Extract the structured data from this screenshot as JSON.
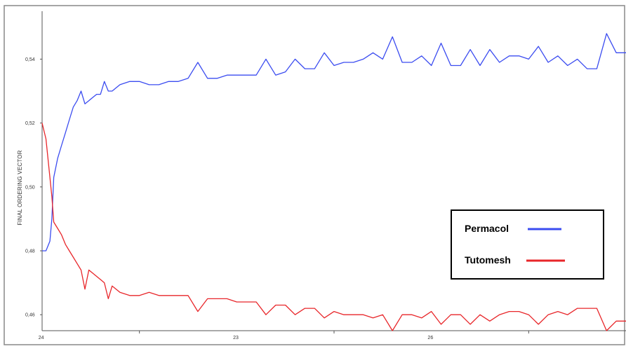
{
  "chart_data": {
    "type": "line",
    "title": "",
    "xlabel": "",
    "ylabel": "FINAL ORDERING VECTOR",
    "xlim": [
      0,
      30
    ],
    "ylim": [
      0.455,
      0.555
    ],
    "x_ticks": [
      {
        "value": 5,
        "label": "24"
      },
      {
        "value": 15,
        "label": "23"
      },
      {
        "value": 25,
        "label": "26"
      }
    ],
    "y_ticks": [
      {
        "value": 0.46,
        "label": "0,46"
      },
      {
        "value": 0.48,
        "label": "0,48"
      },
      {
        "value": 0.5,
        "label": "0,50"
      },
      {
        "value": 0.52,
        "label": "0,52"
      },
      {
        "value": 0.54,
        "label": "0,54"
      }
    ],
    "grid": false,
    "legend_position": "bottom-right",
    "series": [
      {
        "name": "Permacol",
        "color": "#3b4cf0",
        "x": [
          0,
          0.2,
          0.4,
          0.5,
          0.6,
          0.8,
          1.0,
          1.2,
          1.4,
          1.6,
          1.8,
          2.0,
          2.2,
          2.4,
          2.6,
          2.8,
          3.0,
          3.2,
          3.4,
          3.6,
          3.8,
          4.0,
          4.5,
          5.0,
          5.5,
          6.0,
          6.5,
          7.0,
          7.5,
          8.0,
          8.5,
          9.0,
          9.5,
          10.0,
          10.5,
          11.0,
          11.5,
          12.0,
          12.5,
          13.0,
          13.5,
          14.0,
          14.5,
          15.0,
          15.5,
          16.0,
          16.5,
          17.0,
          17.5,
          18.0,
          18.5,
          19.0,
          19.5,
          20.0,
          20.5,
          21.0,
          21.5,
          22.0,
          22.5,
          23.0,
          23.5,
          24.0,
          24.5,
          25.0,
          25.5,
          26.0,
          26.5,
          27.0,
          27.5,
          28.0,
          28.5,
          29.0,
          29.5,
          30.0
        ],
        "values": [
          0.48,
          0.48,
          0.483,
          0.49,
          0.503,
          0.509,
          0.513,
          0.517,
          0.521,
          0.525,
          0.527,
          0.53,
          0.526,
          0.527,
          0.528,
          0.529,
          0.529,
          0.533,
          0.53,
          0.53,
          0.531,
          0.532,
          0.533,
          0.533,
          0.532,
          0.532,
          0.533,
          0.533,
          0.534,
          0.539,
          0.534,
          0.534,
          0.535,
          0.535,
          0.535,
          0.535,
          0.54,
          0.535,
          0.536,
          0.54,
          0.537,
          0.537,
          0.542,
          0.538,
          0.539,
          0.539,
          0.54,
          0.542,
          0.54,
          0.547,
          0.539,
          0.539,
          0.541,
          0.538,
          0.545,
          0.538,
          0.538,
          0.543,
          0.538,
          0.543,
          0.539,
          0.541,
          0.541,
          0.54,
          0.544,
          0.539,
          0.541,
          0.538,
          0.54,
          0.537,
          0.537,
          0.548,
          0.542,
          0.542
        ]
      },
      {
        "name": "Tutomesh",
        "color": "#e8262a",
        "x": [
          0,
          0.2,
          0.4,
          0.5,
          0.6,
          0.8,
          1.0,
          1.2,
          1.4,
          1.6,
          1.8,
          2.0,
          2.2,
          2.4,
          2.6,
          2.8,
          3.0,
          3.2,
          3.4,
          3.6,
          3.8,
          4.0,
          4.5,
          5.0,
          5.5,
          6.0,
          6.5,
          7.0,
          7.5,
          8.0,
          8.5,
          9.0,
          9.5,
          10.0,
          10.5,
          11.0,
          11.5,
          12.0,
          12.5,
          13.0,
          13.5,
          14.0,
          14.5,
          15.0,
          15.5,
          16.0,
          16.5,
          17.0,
          17.5,
          18.0,
          18.5,
          19.0,
          19.5,
          20.0,
          20.5,
          21.0,
          21.5,
          22.0,
          22.5,
          23.0,
          23.5,
          24.0,
          24.5,
          25.0,
          25.5,
          26.0,
          26.5,
          27.0,
          27.5,
          28.0,
          28.5,
          29.0,
          29.5,
          30.0
        ],
        "values": [
          0.52,
          0.515,
          0.503,
          0.497,
          0.489,
          0.487,
          0.485,
          0.482,
          0.48,
          0.478,
          0.476,
          0.474,
          0.468,
          0.474,
          0.473,
          0.472,
          0.471,
          0.47,
          0.465,
          0.469,
          0.468,
          0.467,
          0.466,
          0.466,
          0.467,
          0.466,
          0.466,
          0.466,
          0.466,
          0.461,
          0.465,
          0.465,
          0.465,
          0.464,
          0.464,
          0.464,
          0.46,
          0.463,
          0.463,
          0.46,
          0.462,
          0.462,
          0.459,
          0.461,
          0.46,
          0.46,
          0.46,
          0.459,
          0.46,
          0.455,
          0.46,
          0.46,
          0.459,
          0.461,
          0.457,
          0.46,
          0.46,
          0.457,
          0.46,
          0.458,
          0.46,
          0.461,
          0.461,
          0.46,
          0.457,
          0.46,
          0.461,
          0.46,
          0.462,
          0.462,
          0.462,
          0.455,
          0.458,
          0.458
        ]
      }
    ]
  }
}
